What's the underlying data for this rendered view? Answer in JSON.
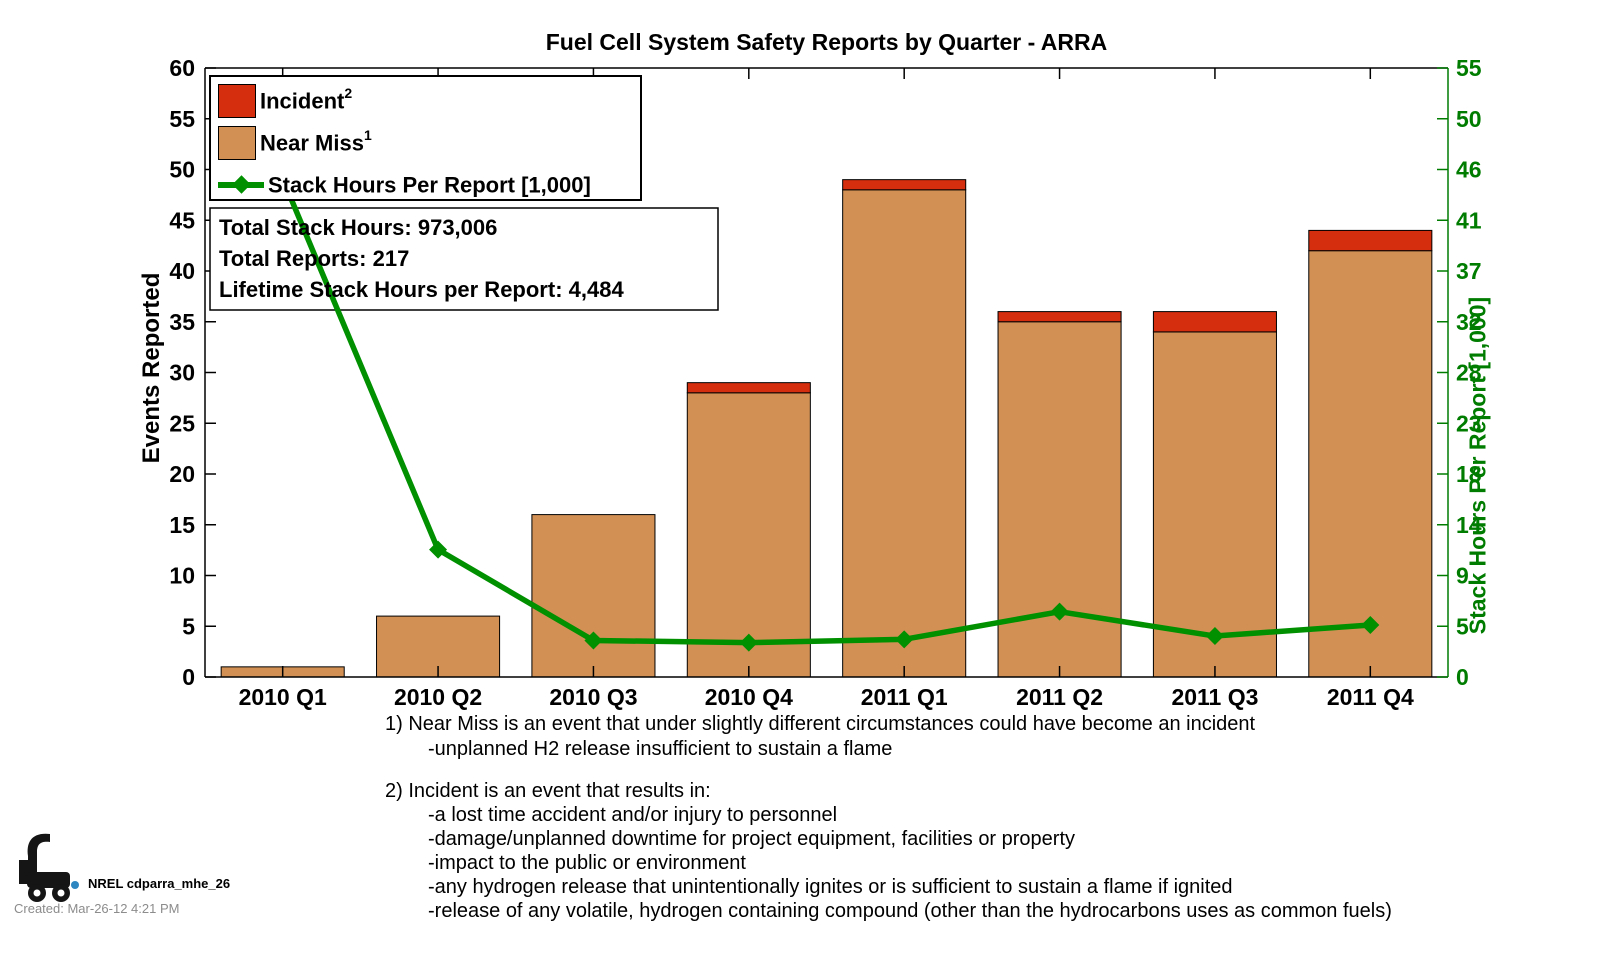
{
  "title": "Fuel Cell System Safety Reports by Quarter - ARRA",
  "legend": {
    "items": [
      {
        "label": "Incident",
        "sup": "2",
        "swatch_color": "#D42E0F",
        "type": "swatch"
      },
      {
        "label": "Near Miss",
        "sup": "1",
        "swatch_color": "#D29055",
        "type": "swatch"
      },
      {
        "label": "Stack Hours Per Report [1,000]",
        "sup": "",
        "line_color": "#009000",
        "type": "line"
      }
    ]
  },
  "totals_box": {
    "lines": [
      "Total Stack Hours: 973,006",
      "Total Reports: 217",
      "Lifetime Stack Hours per Report: 4,484"
    ]
  },
  "footnotes": {
    "note1": {
      "title": "1) Near Miss is an event that under slightly different circumstances could have become an incident",
      "items": [
        "-unplanned H2 release insufficient to sustain a flame"
      ]
    },
    "note2": {
      "title": "2) Incident is an event that results in:",
      "items": [
        "-a lost time accident and/or injury to personnel",
        "-damage/unplanned downtime for project equipment, facilities or property",
        "-impact to the public or environment",
        "-any hydrogen release that unintentionally ignites or is sufficient to sustain a flame if ignited",
        "-release of any volatile, hydrogen containing compound (other than the hydrocarbons uses as common fuels)"
      ]
    }
  },
  "footer": {
    "logo": "forklift-logo",
    "program_label": "NREL cdparra_mhe_26",
    "created_label": "Created: Mar-26-12  4:21 PM"
  },
  "chart_data": {
    "type": "bar",
    "subtype": "stacked-bars-with-line",
    "title": "Fuel Cell System Safety Reports by Quarter - ARRA",
    "categories": [
      "2010 Q1",
      "2010 Q2",
      "2010 Q3",
      "2010 Q4",
      "2011 Q1",
      "2011 Q2",
      "2011 Q3",
      "2011 Q4"
    ],
    "series": [
      {
        "name": "Near Miss",
        "type": "bar",
        "axis": "left",
        "color": "#D29055",
        "values": [
          1,
          6,
          16,
          28,
          48,
          35,
          34,
          42
        ]
      },
      {
        "name": "Incident",
        "type": "bar",
        "axis": "left",
        "color": "#D42E0F",
        "values": [
          0,
          0,
          0,
          1,
          1,
          1,
          2,
          2
        ]
      },
      {
        "name": "Stack Hours Per Report [1,000]",
        "type": "line",
        "axis": "right",
        "color": "#009000",
        "marker": "diamond",
        "values": [
          45,
          11.5,
          3.3,
          3.1,
          3.4,
          5.9,
          3.7,
          4.7
        ]
      }
    ],
    "totals": {
      "stacked_bar_totals": [
        1,
        6,
        16,
        29,
        49,
        36,
        36,
        44
      ]
    },
    "left_axis": {
      "label": "Events Reported",
      "min": 0,
      "max": 60,
      "ticks": [
        0,
        5,
        10,
        15,
        20,
        25,
        30,
        35,
        40,
        45,
        50,
        55,
        60
      ],
      "color": "#000000"
    },
    "right_axis": {
      "label": "Stack Hours Per Report [1,000]",
      "min": 0,
      "max": 55,
      "tick_labels": [
        "0",
        "5",
        "9",
        "14",
        "18",
        "23",
        "28",
        "32",
        "37",
        "41",
        "46",
        "50",
        "55"
      ],
      "color": "#007C00"
    },
    "grid": false,
    "legend_position": "upper-left-inside"
  }
}
